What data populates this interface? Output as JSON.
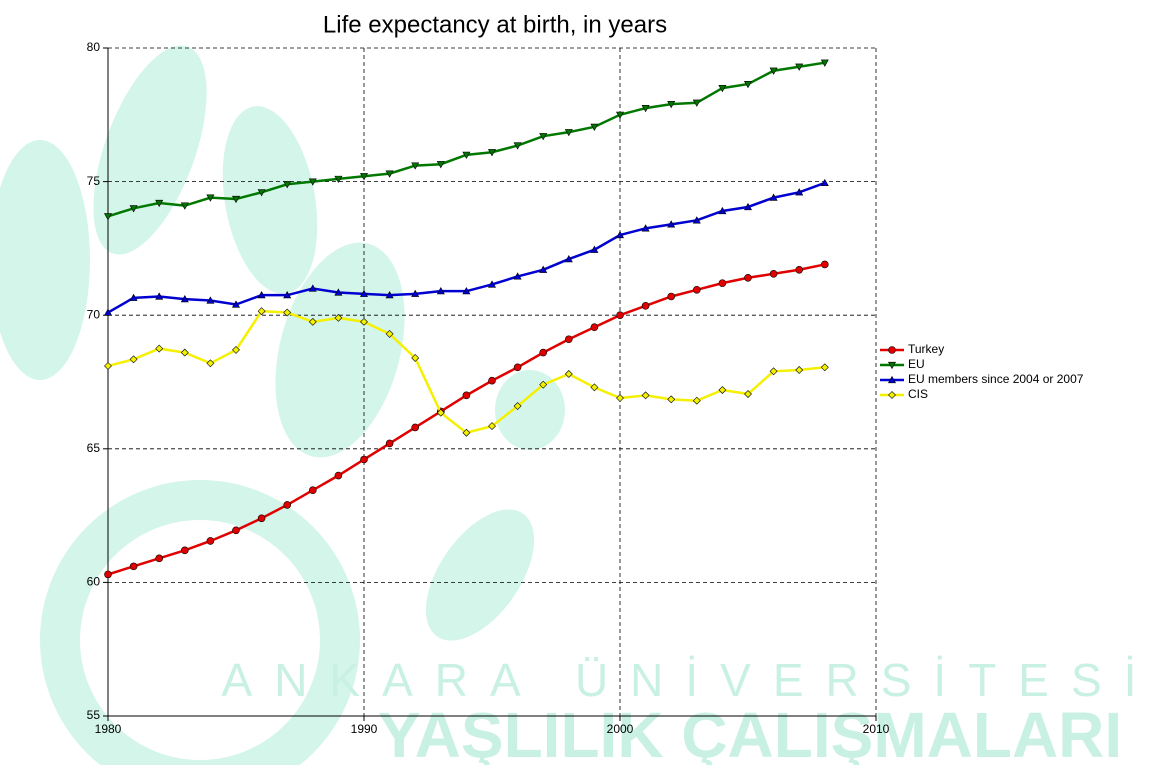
{
  "chart_data": {
    "type": "line",
    "title": "Life expectancy at birth, in years",
    "watermark": [
      "ANKARA ÜNİVERSİTESİ",
      "YAŞLILIK ÇALIŞMALARI"
    ],
    "x": [
      1980,
      1981,
      1982,
      1983,
      1984,
      1985,
      1986,
      1987,
      1988,
      1989,
      1990,
      1991,
      1992,
      1993,
      1994,
      1995,
      1996,
      1997,
      1998,
      1999,
      2000,
      2001,
      2002,
      2003,
      2004,
      2005,
      2006,
      2007,
      2008
    ],
    "xlim": [
      1980,
      2010
    ],
    "xticks": [
      1980,
      1990,
      2000,
      2010
    ],
    "ylim": [
      55,
      80
    ],
    "yticks": [
      55,
      60,
      65,
      70,
      75,
      80
    ],
    "grid": true,
    "legend": "right",
    "series": [
      {
        "name": "Turkey",
        "color": "#e00000",
        "marker": "circle",
        "values": [
          60.3,
          60.6,
          60.9,
          61.2,
          61.55,
          61.95,
          62.4,
          62.9,
          63.45,
          64.0,
          64.6,
          65.2,
          65.8,
          66.4,
          67.0,
          67.55,
          68.05,
          68.6,
          69.1,
          69.55,
          70.0,
          70.35,
          70.7,
          70.95,
          71.2,
          71.4,
          71.55,
          71.7,
          71.9
        ]
      },
      {
        "name": "EU",
        "color": "#007800",
        "marker": "triangle-down",
        "values": [
          73.7,
          74.0,
          74.2,
          74.1,
          74.4,
          74.35,
          74.6,
          74.9,
          75.0,
          75.1,
          75.2,
          75.3,
          75.6,
          75.65,
          76.0,
          76.1,
          76.35,
          76.7,
          76.85,
          77.05,
          77.5,
          77.75,
          77.9,
          77.95,
          78.5,
          78.65,
          79.15,
          79.3,
          79.45
        ]
      },
      {
        "name": "EU members since 2004 or 2007",
        "color": "#0000d0",
        "marker": "triangle-up",
        "values": [
          70.1,
          70.65,
          70.7,
          70.6,
          70.55,
          70.4,
          70.75,
          70.75,
          71.0,
          70.85,
          70.8,
          70.75,
          70.8,
          70.9,
          70.9,
          71.15,
          71.45,
          71.7,
          72.1,
          72.45,
          73.0,
          73.25,
          73.4,
          73.55,
          73.9,
          74.05,
          74.4,
          74.6,
          74.95
        ]
      },
      {
        "name": "CIS",
        "color": "#f5f000",
        "marker": "diamond",
        "values": [
          68.1,
          68.35,
          68.75,
          68.6,
          68.2,
          68.7,
          70.15,
          70.1,
          69.75,
          69.9,
          69.75,
          69.3,
          68.4,
          66.35,
          65.6,
          65.85,
          66.6,
          67.4,
          67.8,
          67.3,
          66.9,
          67.0,
          66.85,
          66.8,
          67.2,
          67.05,
          67.9,
          67.95,
          68.05
        ]
      }
    ]
  }
}
